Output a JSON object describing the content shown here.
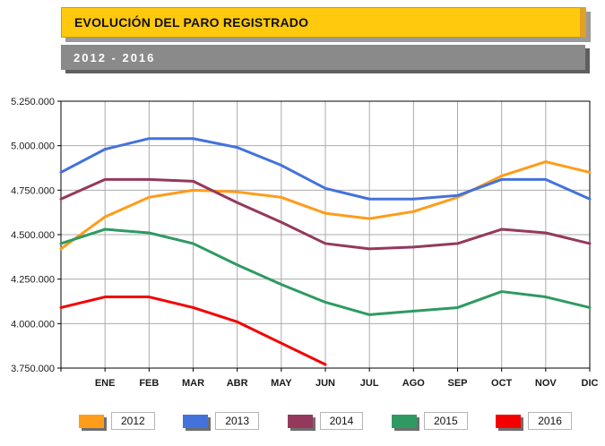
{
  "header": {
    "title": "EVOLUCIÓN DEL PARO REGISTRADO",
    "subtitle": "2012 - 2016"
  },
  "colors": {
    "title_bar": "#FFC90E",
    "subtitle_bar": "#8A8A8A",
    "gridline": "#ABABAB",
    "plot_border": "#000000"
  },
  "chart_data": {
    "type": "line",
    "title": "EVOLUCIÓN DEL PARO REGISTRADO",
    "subtitle": "2012 - 2016",
    "x_labels": [
      "ENE",
      "FEB",
      "MAR",
      "ABR",
      "MAY",
      "JUN",
      "JUL",
      "AGO",
      "SEP",
      "OCT",
      "NOV",
      "DIC"
    ],
    "note": "Each series begins with an unlabeled point on the y-axis (value before ENE); values in persons, read from gridlines.",
    "ylim": [
      3750000,
      5250000
    ],
    "ytick_step": 250000,
    "ytick_labels": [
      "5.250.000",
      "5.000.000",
      "4.750.000",
      "4.500.000",
      "4.250.000",
      "4.000.000",
      "3.750.000"
    ],
    "grid": "both",
    "legend_position": "bottom",
    "series": [
      {
        "name": "2012",
        "color": "#FF9C1A",
        "values": [
          4420000,
          4600000,
          4710000,
          4750000,
          4740000,
          4710000,
          4620000,
          4590000,
          4630000,
          4710000,
          4830000,
          4910000,
          4850000
        ]
      },
      {
        "name": "2013",
        "color": "#4472DB",
        "values": [
          4850000,
          4980000,
          5040000,
          5040000,
          4990000,
          4890000,
          4760000,
          4700000,
          4700000,
          4720000,
          4810000,
          4810000,
          4700000
        ]
      },
      {
        "name": "2014",
        "color": "#94395C",
        "values": [
          4700000,
          4810000,
          4810000,
          4800000,
          4680000,
          4570000,
          4450000,
          4420000,
          4430000,
          4450000,
          4530000,
          4510000,
          4450000
        ]
      },
      {
        "name": "2015",
        "color": "#2E9A62",
        "values": [
          4450000,
          4530000,
          4510000,
          4450000,
          4330000,
          4220000,
          4120000,
          4050000,
          4070000,
          4090000,
          4180000,
          4150000,
          4090000
        ]
      },
      {
        "name": "2016",
        "color": "#F40000",
        "values": [
          4090000,
          4150000,
          4150000,
          4090000,
          4010000,
          3890000,
          3770000
        ]
      }
    ]
  }
}
